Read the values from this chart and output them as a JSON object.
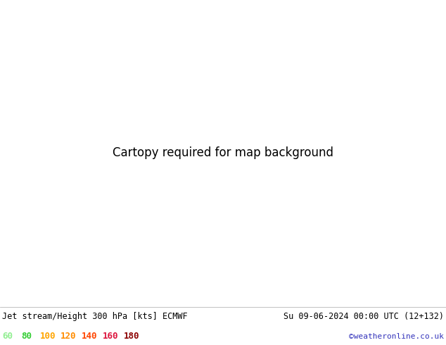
{
  "title_left": "Jet stream/Height 300 hPa [kts] ECMWF",
  "title_right": "Su 09-06-2024 00:00 UTC (12+132)",
  "credit": "©weatheronline.co.uk",
  "legend_values": [
    "60",
    "80",
    "100",
    "120",
    "140",
    "160",
    "180"
  ],
  "legend_colors": [
    "#90ee90",
    "#32cd32",
    "#ffa500",
    "#ff8c00",
    "#ff4500",
    "#dc143c",
    "#8b0000"
  ],
  "bg_ocean": "#c8c8c8",
  "bg_land": "#90ee90",
  "bg_land_dark": "#7ec87e",
  "jet_col1": "#b3eeb3",
  "jet_col2": "#80d4b3",
  "jet_col3": "#66ccaa",
  "contour_col": "#000000",
  "figsize": [
    6.34,
    4.9
  ],
  "dpi": 100,
  "map_extent": [
    -45,
    55,
    27,
    75
  ],
  "contour_912_color": "#000000",
  "contour_944_color": "#000000",
  "bottom_bar_height": 0.115,
  "title_fontsize": 8.5,
  "legend_fontsize": 9,
  "credit_color": "#3333bb"
}
